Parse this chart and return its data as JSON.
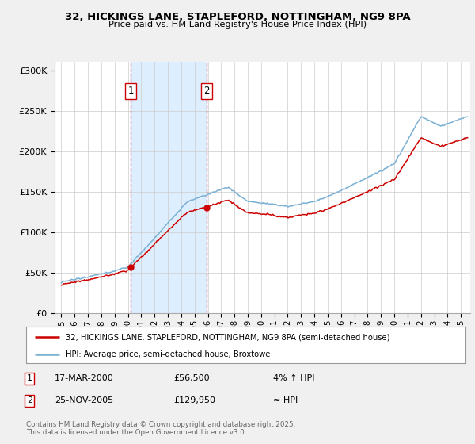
{
  "title_line1": "32, HICKINGS LANE, STAPLEFORD, NOTTINGHAM, NG9 8PA",
  "title_line2": "Price paid vs. HM Land Registry's House Price Index (HPI)",
  "background_color": "#f0f0f0",
  "plot_bg_color": "#ffffff",
  "legend_label_red": "32, HICKINGS LANE, STAPLEFORD, NOTTINGHAM, NG9 8PA (semi-detached house)",
  "legend_label_blue": "HPI: Average price, semi-detached house, Broxtowe",
  "red_color": "#cc0000",
  "blue_color": "#7ab0d4",
  "vspan_color": "#ddeeff",
  "annotation1_label": "1",
  "annotation1_date": "17-MAR-2000",
  "annotation1_price": "£56,500",
  "annotation1_hpi": "4% ↑ HPI",
  "annotation2_label": "2",
  "annotation2_date": "25-NOV-2005",
  "annotation2_price": "£129,950",
  "annotation2_hpi": "≈ HPI",
  "footer": "Contains HM Land Registry data © Crown copyright and database right 2025.\nThis data is licensed under the Open Government Licence v3.0.",
  "ylim": [
    0,
    310000
  ],
  "yticks": [
    0,
    50000,
    100000,
    150000,
    200000,
    250000,
    300000
  ],
  "ytick_labels": [
    "£0",
    "£50K",
    "£100K",
    "£150K",
    "£200K",
    "£250K",
    "£300K"
  ],
  "sale1_x": 2000.21,
  "sale1_y": 56500,
  "sale2_x": 2005.9,
  "sale2_y": 129950,
  "xlim": [
    1994.5,
    2025.7
  ]
}
